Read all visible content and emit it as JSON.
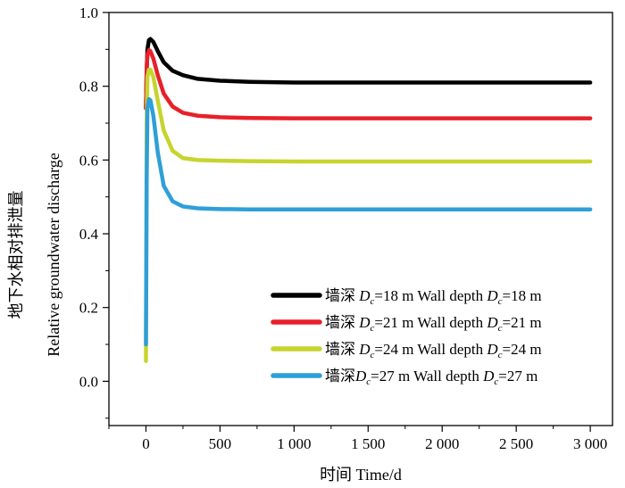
{
  "chart_data": {
    "type": "line",
    "xlabel": "时间 Time/d",
    "ylabel_cn": "地下水相对排泄量",
    "ylabel_en": "Relative groundwater discharge",
    "xlim": [
      -250,
      3150
    ],
    "ylim": [
      -0.12,
      1.0
    ],
    "xticks": [
      0,
      500,
      1000,
      1500,
      2000,
      2500,
      3000
    ],
    "xtick_labels": [
      "0",
      "500",
      "1 000",
      "1 500",
      "2 000",
      "2 500",
      "3 000"
    ],
    "yticks": [
      0.0,
      0.2,
      0.4,
      0.6,
      0.8,
      1.0
    ],
    "ytick_labels": [
      "0.0",
      "0.2",
      "0.4",
      "0.6",
      "0.8",
      "1.0"
    ],
    "series": [
      {
        "name": "墙深 Dc=18 m Wall depth Dc=18 m",
        "legend": {
          "cn": "墙深 ",
          "d1": "D",
          "depth1": "=18 m Wall depth ",
          "d2": "D",
          "depth2": "=18 m",
          "sub": "c"
        },
        "color": "#000000",
        "x": [
          0,
          5,
          10,
          20,
          30,
          50,
          80,
          120,
          180,
          250,
          350,
          500,
          700,
          1000,
          1500,
          2000,
          2500,
          3000
        ],
        "y": [
          0.74,
          0.84,
          0.9,
          0.925,
          0.928,
          0.92,
          0.895,
          0.865,
          0.842,
          0.83,
          0.82,
          0.815,
          0.812,
          0.81,
          0.81,
          0.81,
          0.81,
          0.81
        ]
      },
      {
        "name": "墙深 Dc=21 m Wall depth Dc=21 m",
        "legend": {
          "cn": "墙深 ",
          "d1": "D",
          "depth1": "=21 m Wall depth ",
          "d2": "D",
          "depth2": "=21 m",
          "sub": "c"
        },
        "color": "#e8202a",
        "x": [
          0,
          5,
          10,
          20,
          30,
          50,
          80,
          120,
          180,
          250,
          350,
          500,
          700,
          1000,
          1500,
          2000,
          2500,
          3000
        ],
        "y": [
          0.74,
          0.85,
          0.885,
          0.898,
          0.895,
          0.875,
          0.83,
          0.78,
          0.745,
          0.728,
          0.72,
          0.716,
          0.714,
          0.713,
          0.713,
          0.713,
          0.713,
          0.713
        ]
      },
      {
        "name": "墙深 Dc=24 m Wall depth Dc=24 m",
        "legend": {
          "cn": "墙深 ",
          "d1": "D",
          "depth1": "=24 m Wall depth ",
          "d2": "D",
          "depth2": "=24 m",
          "sub": "c"
        },
        "color": "#c7d42e",
        "x": [
          0,
          5,
          10,
          20,
          30,
          50,
          80,
          120,
          180,
          250,
          350,
          500,
          700,
          1000,
          1500,
          2000,
          2500,
          3000
        ],
        "y": [
          0.055,
          0.7,
          0.825,
          0.845,
          0.845,
          0.825,
          0.76,
          0.68,
          0.625,
          0.605,
          0.6,
          0.598,
          0.597,
          0.596,
          0.596,
          0.596,
          0.596,
          0.596
        ]
      },
      {
        "name": "墙深Dc=27 m Wall depth Dc=27 m",
        "legend": {
          "cn": "墙深",
          "d1": "D",
          "depth1": "=27 m Wall depth ",
          "d2": "D",
          "depth2": "=27 m",
          "sub": "c"
        },
        "color": "#2e9fd8",
        "x": [
          0,
          5,
          10,
          20,
          30,
          50,
          80,
          120,
          180,
          250,
          350,
          500,
          700,
          1000,
          1500,
          2000,
          2500,
          3000
        ],
        "y": [
          0.1,
          0.55,
          0.74,
          0.765,
          0.762,
          0.72,
          0.62,
          0.53,
          0.488,
          0.474,
          0.469,
          0.467,
          0.466,
          0.466,
          0.466,
          0.466,
          0.466,
          0.466
        ]
      }
    ]
  }
}
